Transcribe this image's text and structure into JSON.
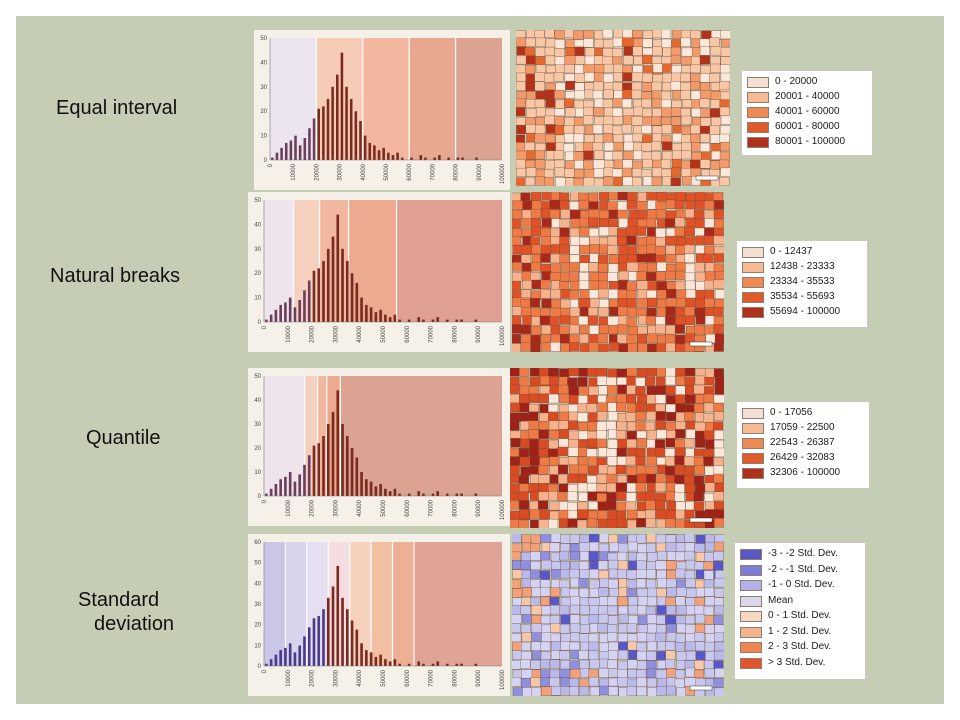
{
  "rows": [
    {
      "id": "equal-interval",
      "label_lines": [
        "Equal interval"
      ],
      "histogram": {
        "class_breaks": [
          0,
          20000,
          40000,
          60000,
          80000,
          100000
        ],
        "class_colors": [
          "#ece4ef",
          "#f6ccb6",
          "#f2b79e",
          "#e8a78f",
          "#dca393"
        ]
      },
      "map_colors": [
        "#fbe8da",
        "#f7c7a6",
        "#f39a6b",
        "#e5692f",
        "#b5321a"
      ],
      "map_weights": [
        0.18,
        0.46,
        0.24,
        0.08,
        0.04
      ],
      "legend": [
        {
          "label": "0 - 20000",
          "color": "#f4dfd3"
        },
        {
          "label": "20001 - 40000",
          "color": "#f6bb93"
        },
        {
          "label": "40001 - 60000",
          "color": "#f08a55"
        },
        {
          "label": "60001 - 80000",
          "color": "#e15a2a"
        },
        {
          "label": "80001 - 100000",
          "color": "#b0301c"
        }
      ]
    },
    {
      "id": "natural-breaks",
      "label_lines": [
        "Natural breaks"
      ],
      "histogram": {
        "class_breaks": [
          0,
          12437,
          23333,
          35533,
          55693,
          100000
        ],
        "class_colors": [
          "#efe3ec",
          "#f6d0bf",
          "#f2b89f",
          "#eeaa8e",
          "#dfa093"
        ]
      },
      "map_colors": [
        "#fbe8da",
        "#f5b28c",
        "#ee7a45",
        "#df5126",
        "#a8291a"
      ],
      "map_weights": [
        0.1,
        0.16,
        0.34,
        0.28,
        0.12
      ],
      "legend": [
        {
          "label": "0 - 12437",
          "color": "#f4dfd3"
        },
        {
          "label": "12438 - 23333",
          "color": "#f6bb93"
        },
        {
          "label": "23334 - 35533",
          "color": "#f08a55"
        },
        {
          "label": "35534 - 55693",
          "color": "#e15a2a"
        },
        {
          "label": "55694 - 100000",
          "color": "#b0301c"
        }
      ]
    },
    {
      "id": "quantile",
      "label_lines": [
        "Quantile"
      ],
      "histogram": {
        "class_breaks": [
          0,
          17056,
          22500,
          26387,
          32083,
          100000
        ],
        "class_colors": [
          "#efe3ec",
          "#f6d0bf",
          "#f2b89f",
          "#eeaa8e",
          "#dca393"
        ]
      },
      "map_colors": [
        "#fbe8da",
        "#f5b28c",
        "#ee7a45",
        "#d94b22",
        "#9e2218"
      ],
      "map_weights": [
        0.16,
        0.2,
        0.22,
        0.22,
        0.2
      ],
      "legend": [
        {
          "label": "0 - 17056",
          "color": "#f4dfd3"
        },
        {
          "label": "17059 - 22500",
          "color": "#f6bb93"
        },
        {
          "label": "22543 - 26387",
          "color": "#f08a55"
        },
        {
          "label": "26429 - 32083",
          "color": "#e15a2a"
        },
        {
          "label": "32306 - 100000",
          "color": "#b0301c"
        }
      ]
    },
    {
      "id": "standard-deviation",
      "label_lines": [
        "Standard",
        "deviation"
      ],
      "histogram": {
        "class_breaks": [
          0,
          9000,
          18000,
          27000,
          36000,
          45000,
          54000,
          63000,
          100000
        ],
        "class_colors": [
          "#c9c6e6",
          "#d8d4ec",
          "#e6dff0",
          "#f3dde0",
          "#f6d2bd",
          "#f3bfa2",
          "#eeb095",
          "#e0a396"
        ]
      },
      "map_colors": [
        "#c8c8ee",
        "#d4d3f2",
        "#b9b9ea",
        "#8f8fde",
        "#5757c9",
        "#f7c8a8",
        "#f2a27a"
      ],
      "map_weights": [
        0.34,
        0.3,
        0.14,
        0.08,
        0.05,
        0.06,
        0.03
      ],
      "legend": [
        {
          "label": "-3 - -2 Std. Dev.",
          "color": "#5a55c4"
        },
        {
          "label": "-2 - -1 Std. Dev.",
          "color": "#7f7bd6"
        },
        {
          "label": "-1 - 0 Std. Dev.",
          "color": "#b2b0e6"
        },
        {
          "label": "Mean",
          "color": "#dcd7ea"
        },
        {
          "label": "0 - 1 Std. Dev.",
          "color": "#f7d7c2"
        },
        {
          "label": "1 - 2 Std. Dev.",
          "color": "#f4b38f"
        },
        {
          "label": "2 - 3 Std. Dev.",
          "color": "#ee8450"
        },
        {
          "label": "> 3 Std. Dev.",
          "color": "#e1552a"
        }
      ]
    }
  ],
  "histogram_axis": {
    "y_ticks": [
      "0",
      "10",
      "20",
      "30",
      "40",
      "50"
    ],
    "y_ticks_std": [
      "0",
      "10",
      "20",
      "30",
      "40",
      "50",
      "60"
    ],
    "x_ticks": [
      "0",
      "10000",
      "20000",
      "30000",
      "40000",
      "50000",
      "60000",
      "70000",
      "80000",
      "90000",
      "100000"
    ]
  },
  "chart_data": {
    "type": "bar",
    "x": [
      2000,
      4000,
      6000,
      8000,
      10000,
      12000,
      14000,
      16000,
      18000,
      20000,
      22000,
      24000,
      26000,
      28000,
      30000,
      32000,
      34000,
      36000,
      38000,
      40000,
      42000,
      44000,
      46000,
      48000,
      50000,
      52000,
      54000,
      56000,
      58000,
      60000,
      62000,
      64000,
      66000,
      68000,
      70000,
      72000,
      74000,
      76000,
      78000,
      80000,
      82000,
      84000,
      86000,
      88000,
      90000,
      92000,
      94000,
      96000,
      98000,
      100000
    ],
    "values": [
      1,
      3,
      5,
      7,
      8,
      10,
      6,
      9,
      13,
      17,
      21,
      22,
      25,
      30,
      35,
      44,
      30,
      25,
      20,
      16,
      10,
      7,
      6,
      4,
      5,
      3,
      2,
      3,
      1,
      0,
      1,
      0,
      2,
      1,
      0,
      1,
      2,
      0,
      1,
      0,
      1,
      1,
      0,
      0,
      1,
      0,
      0,
      0,
      0,
      0
    ],
    "xlim": [
      0,
      100000
    ],
    "ylim": [
      0,
      50
    ]
  }
}
